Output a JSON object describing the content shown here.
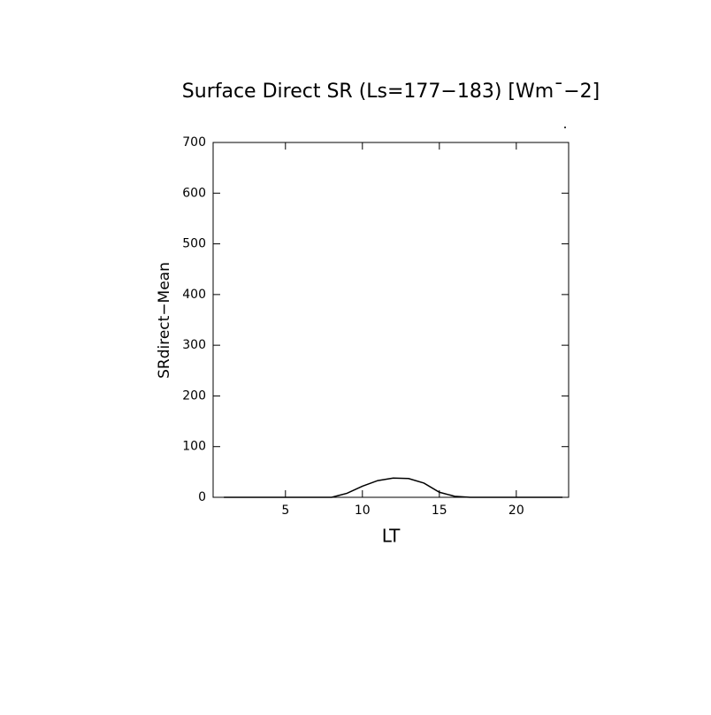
{
  "chart_data": {
    "type": "line",
    "title": "Surface Direct SR (Ls=177−183) [Wm¯−2]",
    "x_label": "LT",
    "y_label": "SRdirect−Mean",
    "x": [
      1,
      2,
      3,
      4,
      5,
      6,
      7,
      8,
      9,
      10,
      11,
      12,
      13,
      14,
      15,
      16,
      17,
      18,
      19,
      20,
      21,
      22,
      23
    ],
    "series": [
      {
        "name": "SRdirect-Mean",
        "color": "#000000",
        "values": [
          0,
          0,
          0,
          0,
          0,
          0,
          0,
          0,
          8,
          22,
          33,
          38,
          37,
          28,
          10,
          2,
          0,
          0,
          0,
          0,
          0,
          0,
          0
        ]
      }
    ],
    "xlim": [
      0.3,
      23.4
    ],
    "xticks": [
      5,
      10,
      15,
      20
    ],
    "ylim": [
      0,
      700
    ],
    "yticks": [
      0,
      100,
      200,
      300,
      400,
      500,
      600,
      700
    ]
  }
}
